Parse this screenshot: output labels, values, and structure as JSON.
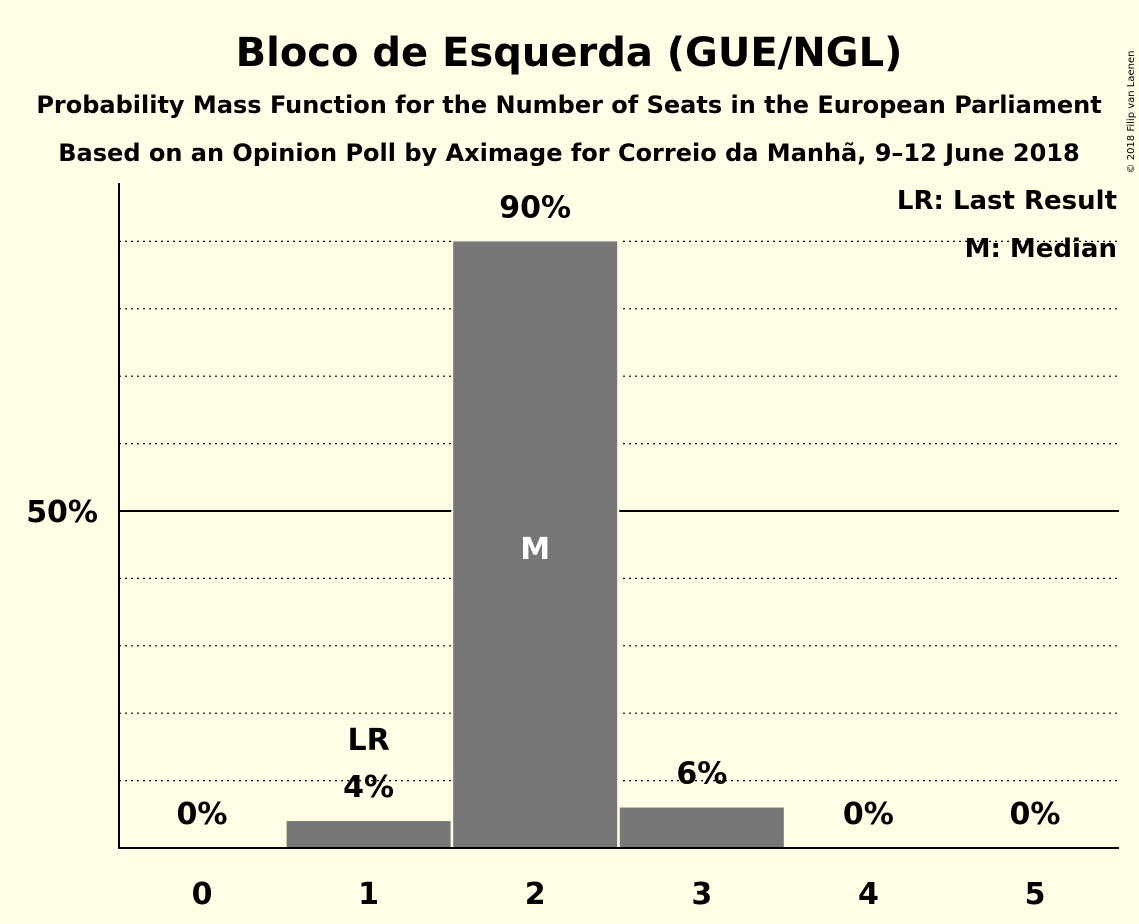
{
  "chart_data": {
    "type": "bar",
    "title": "Bloco de Esquerda (GUE/NGL)",
    "subtitle": "Probability Mass Function for the Number of Seats in the European Parliament",
    "subtitle2": "Based on an Opinion Poll by Aximage for Correio da Manhã, 9–12 June 2018",
    "categories": [
      "0",
      "1",
      "2",
      "3",
      "4",
      "5"
    ],
    "values": [
      0,
      4,
      90,
      6,
      0,
      0
    ],
    "value_labels": [
      "0%",
      "4%",
      "90%",
      "6%",
      "0%",
      "0%"
    ],
    "ylim": [
      0,
      100
    ],
    "ytick_label": "50%",
    "ytick_value": 50,
    "minor_gridlines": [
      10,
      20,
      30,
      40,
      60,
      70,
      80,
      90
    ],
    "last_result": {
      "category": "1",
      "label": "LR"
    },
    "median": {
      "category": "2",
      "label": "M"
    },
    "legend": [
      "LR: Last Result",
      "M: Median"
    ],
    "legend_position": "top-right",
    "bar_color": "#777777",
    "background_color": "#FFFDE6",
    "copyright": "© 2018 Filip van Laenen"
  }
}
